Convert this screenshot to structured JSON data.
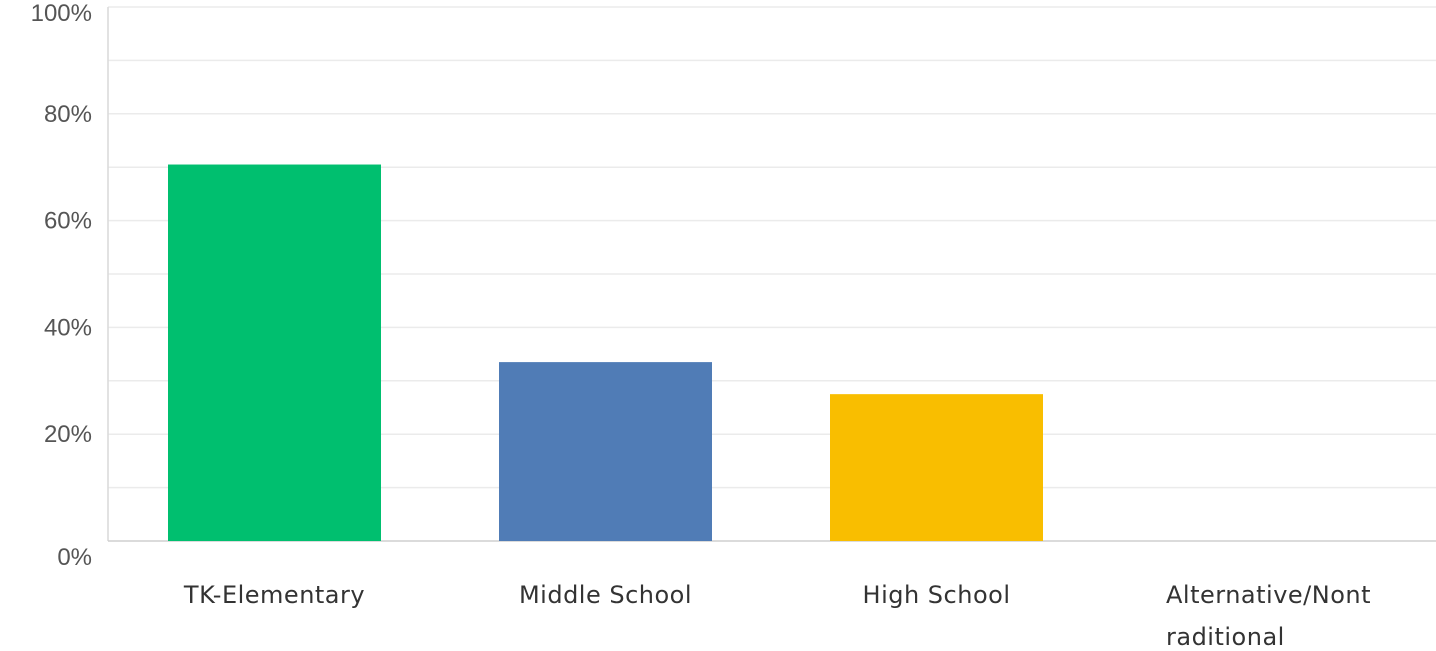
{
  "chart_data": {
    "type": "bar",
    "categories": [
      "TK-Elementary",
      "Middle School",
      "High School",
      "Alternative/Nontraditional"
    ],
    "category_label_lines": [
      [
        "TK-Elementary"
      ],
      [
        "Middle School"
      ],
      [
        "High School"
      ],
      [
        "Alternative/Nont",
        "raditional"
      ]
    ],
    "values": [
      70.5,
      33.5,
      27.5,
      0
    ],
    "colors": [
      "#00bf6f",
      "#507cb6",
      "#f9be00",
      "#6bc8cd"
    ],
    "ylim": [
      0,
      100
    ],
    "yticks": [
      0,
      20,
      40,
      60,
      80,
      100
    ],
    "ytick_labels": [
      "0%",
      "20%",
      "40%",
      "60%",
      "80%",
      "100%"
    ],
    "minor_gridlines": true,
    "title": "",
    "xlabel": "",
    "ylabel": ""
  }
}
